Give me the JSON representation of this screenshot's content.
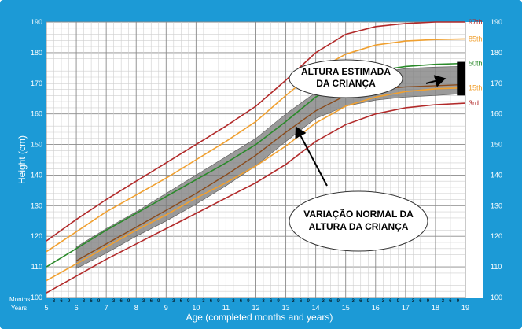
{
  "chart_data": {
    "type": "line",
    "title": "",
    "xlabel": "Age (completed months and years)",
    "ylabel": "Height (cm)",
    "xlim": [
      5,
      19
    ],
    "ylim": [
      100,
      190
    ],
    "x_ticks": [
      5,
      6,
      7,
      8,
      9,
      10,
      11,
      12,
      13,
      14,
      15,
      16,
      17,
      18,
      19
    ],
    "y_ticks": [
      100,
      110,
      120,
      130,
      140,
      150,
      160,
      170,
      180,
      190
    ],
    "month_ticks": [
      "3",
      "6",
      "9"
    ],
    "row_labels": {
      "months": "Months",
      "years": "Years"
    },
    "series": [
      {
        "name": "97th",
        "color": "#b22a2a",
        "x": [
          5,
          6,
          7,
          8,
          9,
          10,
          11,
          12,
          13,
          14,
          15,
          16,
          17,
          18,
          19
        ],
        "y": [
          118.5,
          125.5,
          132.0,
          138.0,
          144.0,
          150.0,
          156.0,
          162.5,
          171.0,
          180.0,
          186.0,
          188.5,
          189.5,
          190.0,
          190.0
        ]
      },
      {
        "name": "85th",
        "color": "#f0a030",
        "x": [
          5,
          6,
          7,
          8,
          9,
          10,
          11,
          12,
          13,
          14,
          15,
          16,
          17,
          18,
          19
        ],
        "y": [
          115.0,
          121.5,
          128.0,
          133.5,
          139.0,
          145.0,
          151.0,
          157.5,
          166.0,
          174.0,
          179.5,
          182.5,
          183.8,
          184.3,
          184.5
        ]
      },
      {
        "name": "50th",
        "color": "#2a8a2a",
        "x": [
          5,
          6,
          7,
          8,
          9,
          10,
          11,
          12,
          13,
          14,
          15,
          16,
          17,
          18,
          19
        ],
        "y": [
          110.0,
          116.0,
          122.0,
          127.5,
          133.0,
          138.5,
          144.0,
          150.0,
          157.5,
          165.5,
          171.0,
          174.0,
          175.5,
          176.2,
          176.5
        ]
      },
      {
        "name": "15th",
        "color": "#f0a030",
        "x": [
          5,
          6,
          7,
          8,
          9,
          10,
          11,
          12,
          13,
          14,
          15,
          16,
          17,
          18,
          19
        ],
        "y": [
          105.5,
          111.0,
          116.5,
          122.0,
          127.0,
          132.5,
          137.5,
          143.0,
          149.5,
          157.0,
          162.5,
          165.5,
          167.3,
          168.2,
          168.5
        ]
      },
      {
        "name": "3rd",
        "color": "#b22a2a",
        "x": [
          5,
          6,
          7,
          8,
          9,
          10,
          11,
          12,
          13,
          14,
          15,
          16,
          17,
          18,
          19
        ],
        "y": [
          101.5,
          107.0,
          112.5,
          117.5,
          122.5,
          127.5,
          132.5,
          137.5,
          143.5,
          151.0,
          156.5,
          160.0,
          162.0,
          163.0,
          163.5
        ]
      },
      {
        "name": "child",
        "color": "#8a4a1a",
        "x": [
          6,
          7,
          8,
          9,
          10,
          11,
          12,
          13,
          14,
          15,
          16,
          17,
          18,
          18.8
        ],
        "y": [
          112.0,
          117.5,
          123.0,
          128.5,
          134.0,
          140.0,
          146.5,
          154.0,
          161.0,
          166.0,
          168.0,
          168.8,
          169.2,
          169.5
        ]
      }
    ],
    "band": {
      "name": "Variação normal",
      "x": [
        6,
        7,
        8,
        9,
        10,
        11,
        12,
        13,
        14,
        15,
        16,
        17,
        18,
        18.8
      ],
      "upper": [
        116.5,
        122.5,
        128.0,
        134.0,
        140.0,
        146.0,
        152.0,
        160.0,
        167.0,
        171.5,
        173.5,
        174.8,
        175.3,
        175.5
      ],
      "lower": [
        109.5,
        114.5,
        120.0,
        125.0,
        130.5,
        136.5,
        143.0,
        151.0,
        158.5,
        162.5,
        164.5,
        165.5,
        166.0,
        166.5
      ]
    },
    "estimate_bar": {
      "x": 18.85,
      "y_low": 166.0,
      "y_high": 177.0
    },
    "annotations": [
      {
        "id": "estimate",
        "lines": [
          "ALTURA ESTIMADA",
          "DA CRIANÇA"
        ],
        "target_x": 18.3,
        "target_y": 171.5
      },
      {
        "id": "variation",
        "lines": [
          "VARIAÇÃO NORMAL DA",
          "ALTURA DA CRIANÇA"
        ],
        "target_x": 13.35,
        "target_y": 155.5
      }
    ]
  }
}
